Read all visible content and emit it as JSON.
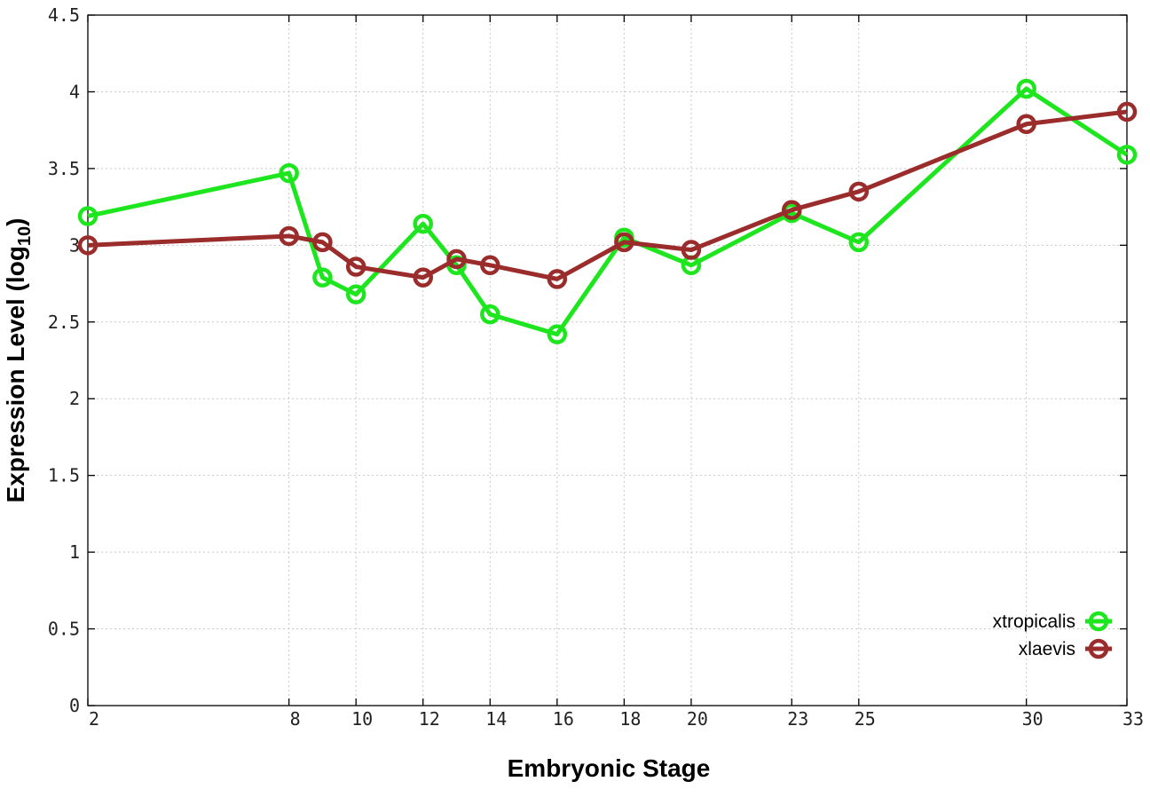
{
  "chart_data": {
    "type": "line",
    "xlabel": "Embryonic Stage",
    "ylabel_main": "Expression Level (log",
    "ylabel_sub": "10",
    "ylabel_close": ")",
    "xlim": [
      2,
      33
    ],
    "ylim": [
      0,
      4.5
    ],
    "x_ticks": [
      2,
      8,
      10,
      12,
      14,
      16,
      18,
      20,
      23,
      25,
      30,
      33
    ],
    "y_ticks": [
      0,
      0.5,
      1,
      1.5,
      2,
      2.5,
      3,
      3.5,
      4,
      4.5
    ],
    "y_tick_labels": [
      "0",
      "0.5",
      "1",
      "1.5",
      "2",
      "2.5",
      "3",
      "3.5",
      "4",
      "4.5"
    ],
    "grid": true,
    "legend_position": "bottom-right",
    "series": [
      {
        "name": "xtropicalis",
        "color": "#1ee61e",
        "x": [
          2,
          8,
          9,
          10,
          12,
          13,
          14,
          16,
          18,
          20,
          23,
          25,
          30,
          33
        ],
        "y": [
          3.19,
          3.47,
          2.79,
          2.68,
          3.14,
          2.87,
          2.55,
          2.42,
          3.05,
          2.87,
          3.21,
          3.02,
          4.02,
          3.59
        ]
      },
      {
        "name": "xlaevis",
        "color": "#9b2c2c",
        "x": [
          2,
          8,
          9,
          10,
          12,
          13,
          14,
          16,
          18,
          20,
          23,
          25,
          30,
          33
        ],
        "y": [
          3.0,
          3.06,
          3.02,
          2.86,
          2.79,
          2.91,
          2.87,
          2.78,
          3.02,
          2.97,
          3.23,
          3.35,
          3.79,
          3.87
        ]
      }
    ]
  }
}
